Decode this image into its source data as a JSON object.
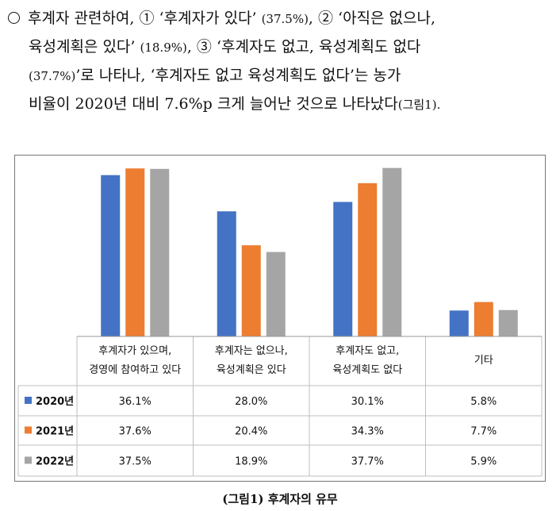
{
  "paragraph": {
    "line1_a": "후계자 관련하여, ① ‘후계자가 있다’ ",
    "line1_b": "(37.5%)",
    "line1_c": ", ② ‘아직은 없으나,",
    "line2_a": "육성계획은 있다’ ",
    "line2_b": "(18.9%)",
    "line2_c": ", ③ ‘후계자도 없고, 육성계획도 없다",
    "line3_a": "(37.7%)",
    "line3_b": "’로 나타나, ‘후계자도 없고 육성계획도 없다’는 농가",
    "line4_a": "비율이 2020년 대비 7.6%p 크게 늘어난 것으로 나타났다",
    "line4_b": "(그림1)."
  },
  "chart_data": {
    "type": "bar",
    "categories": [
      [
        "후계자가 있으며,",
        "경영에 참여하고 있다"
      ],
      [
        "후계자는 없으나,",
        "육성계획은 있다"
      ],
      [
        "후계자도 없고,",
        "육성계획도 없다"
      ],
      [
        "기타"
      ]
    ],
    "series": [
      {
        "name": "2020년",
        "color": "#4472c4",
        "values": [
          36.1,
          28.0,
          30.1,
          5.8
        ],
        "labels": [
          "36.1%",
          "28.0%",
          "30.1%",
          "5.8%"
        ]
      },
      {
        "name": "2021년",
        "color": "#ed7d31",
        "values": [
          37.6,
          20.4,
          34.3,
          7.7
        ],
        "labels": [
          "37.6%",
          "20.4%",
          "34.3%",
          "7.7%"
        ]
      },
      {
        "name": "2022년",
        "color": "#a5a5a5",
        "values": [
          37.5,
          18.9,
          37.7,
          5.9
        ],
        "labels": [
          "37.5%",
          "18.9%",
          "37.7%",
          "5.9%"
        ]
      }
    ],
    "ylim": [
      0,
      38
    ],
    "legend": "table-left",
    "grid": false
  },
  "caption": "(그림1) 후계자의 유무"
}
